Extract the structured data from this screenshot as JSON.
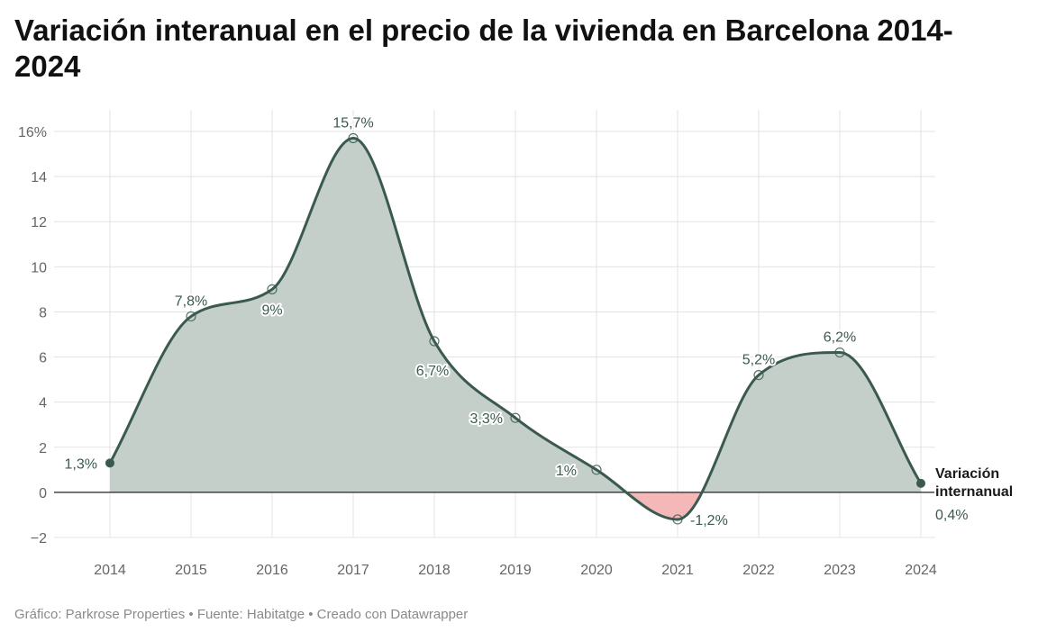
{
  "colors": {
    "line": "#3b5a4f",
    "fill_positive": "#c5cfca",
    "fill_negative": "#f5b8b8",
    "grid": "#e3e3e3",
    "zero_line": "#222222"
  },
  "chart_data": {
    "type": "area",
    "title": "Variación interanual en el precio de la vivienda en Barcelona 2014-2024",
    "x": [
      2014,
      2015,
      2016,
      2017,
      2018,
      2019,
      2020,
      2021,
      2022,
      2023,
      2024
    ],
    "series": [
      {
        "name": "Variación internanual",
        "values": [
          1.3,
          7.8,
          9,
          15.7,
          6.7,
          3.3,
          1,
          -1.2,
          5.2,
          6.2,
          0.4
        ],
        "labels": [
          "1,3%",
          "7,8%",
          "9%",
          "15,7%",
          "6,7%",
          "3,3%",
          "1%",
          "-1,2%",
          "5,2%",
          "6,2%",
          "0,4%"
        ]
      }
    ],
    "x_ticks": [
      "2014",
      "2015",
      "2016",
      "2017",
      "2018",
      "2019",
      "2020",
      "2021",
      "2022",
      "2023",
      "2024"
    ],
    "y_ticks": [
      -2,
      0,
      2,
      4,
      6,
      8,
      10,
      12,
      14,
      16
    ],
    "y_tick_labels": [
      "−2",
      "0",
      "2",
      "4",
      "6",
      "8",
      "10",
      "12",
      "14",
      "16%"
    ],
    "ylim": [
      -2,
      16
    ],
    "xlim": [
      2014,
      2024
    ],
    "grid": true,
    "legend": "inline-end",
    "xlabel": "",
    "ylabel": ""
  },
  "footer": "Gráfico: Parkrose Properties • Fuente: Habitatge • Creado con Datawrapper"
}
